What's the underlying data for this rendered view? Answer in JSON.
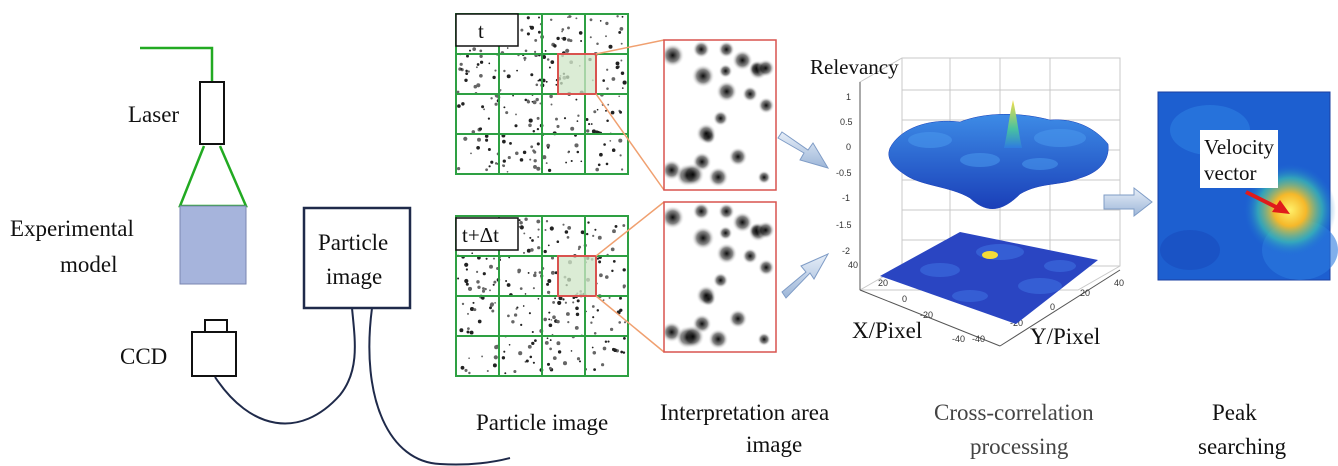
{
  "setup": {
    "laser_label": "Laser",
    "model_label_line1": "Experimental",
    "model_label_line2": "model",
    "ccd_label": "CCD",
    "particle_box_line1": "Particle",
    "particle_box_line2": "image",
    "colors": {
      "laser_beam": "#22aa22",
      "model_fill": "#a6b4dc",
      "cable": "#1f2a4a"
    }
  },
  "grids": {
    "top_label": "t",
    "bottom_label": "t+Δt",
    "grid_color": "#2ea043",
    "highlight_color": "#d9534f"
  },
  "surface": {
    "zlabel": "Relevancy",
    "xlabel": "X/Pixel",
    "ylabel": "Y/Pixel",
    "z_ticks": [
      "1",
      "0.5",
      "0",
      "-0.5",
      "-1",
      "-1.5",
      "-2"
    ],
    "x_ticks": [
      "40",
      "20",
      "0",
      "-20",
      "-40"
    ],
    "y_ticks": [
      "-40",
      "-20",
      "0",
      "20",
      "40"
    ]
  },
  "peak_panel": {
    "label_line1": "Velocity",
    "label_line2": "vector",
    "arrow_color": "#e01b1b"
  },
  "captions": {
    "particle_image": "Particle image",
    "interpretation_line1": "Interpretation area",
    "interpretation_line2": "image",
    "cross_line1": "Cross-correlation",
    "cross_line2": "processing",
    "peak_line1": "Peak",
    "peak_line2": "searching"
  }
}
